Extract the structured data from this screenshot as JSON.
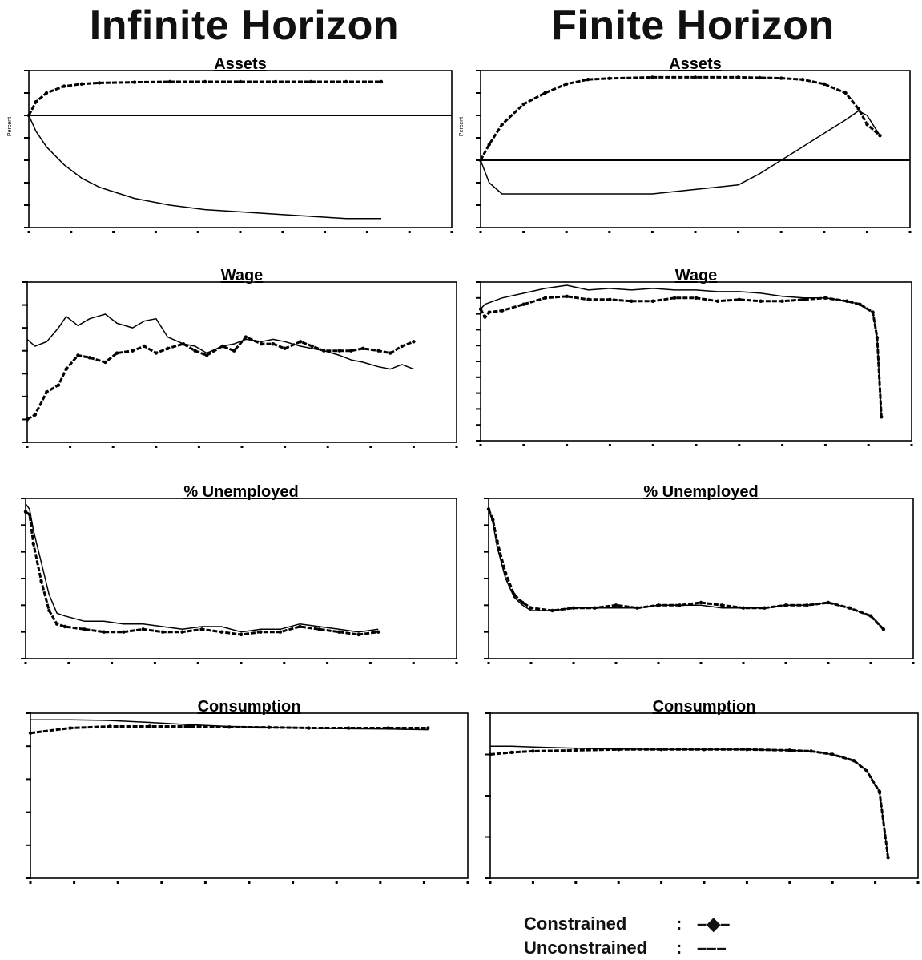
{
  "headings": {
    "left": "Infinite Horizon",
    "right": "Finite Horizon"
  },
  "legend": {
    "constrained_label": "Constrained",
    "constrained_symbol": "–◆–",
    "unconstrained_label": "Unconstrained",
    "unconstrained_symbol": "–––",
    "separator": ":"
  },
  "chart_data": [
    {
      "id": "infinite-assets",
      "column": "infinite",
      "row": 0,
      "type": "line",
      "title": "Assets",
      "ylabel": "Percent",
      "x": [
        0,
        0.02,
        0.05,
        0.1,
        0.15,
        0.2,
        0.3,
        0.4,
        0.5,
        0.6,
        0.7,
        0.8,
        0.9,
        1.0
      ],
      "xlim": [
        0,
        1.2
      ],
      "ylim": [
        -5,
        2
      ],
      "zero_line": 0,
      "series": [
        {
          "style": "constrained",
          "values": [
            0,
            0.6,
            1.0,
            1.3,
            1.4,
            1.45,
            1.48,
            1.5,
            1.5,
            1.5,
            1.5,
            1.5,
            1.5,
            1.5
          ]
        },
        {
          "style": "unconstrained",
          "values": [
            0,
            -0.7,
            -1.4,
            -2.2,
            -2.8,
            -3.2,
            -3.7,
            -4.0,
            -4.2,
            -4.3,
            -4.4,
            -4.5,
            -4.6,
            -4.6
          ]
        }
      ]
    },
    {
      "id": "finite-assets",
      "column": "finite",
      "row": 0,
      "type": "line",
      "title": "Assets",
      "ylabel": "Percent",
      "x": [
        0,
        0.02,
        0.05,
        0.1,
        0.15,
        0.2,
        0.25,
        0.3,
        0.4,
        0.5,
        0.6,
        0.65,
        0.7,
        0.75,
        0.8,
        0.85,
        0.88,
        0.9,
        0.93
      ],
      "xlim": [
        0,
        1.0
      ],
      "ylim": [
        -3,
        4
      ],
      "zero_line": 0,
      "series": [
        {
          "style": "constrained",
          "values": [
            0,
            0.7,
            1.6,
            2.5,
            3.0,
            3.4,
            3.6,
            3.65,
            3.7,
            3.7,
            3.7,
            3.68,
            3.66,
            3.6,
            3.4,
            3.0,
            2.3,
            1.6,
            1.1
          ]
        },
        {
          "style": "unconstrained",
          "values": [
            0,
            -1.0,
            -1.5,
            -1.5,
            -1.5,
            -1.5,
            -1.5,
            -1.5,
            -1.5,
            -1.3,
            -1.1,
            -0.6,
            0.0,
            0.6,
            1.2,
            1.8,
            2.2,
            2.0,
            1.1
          ]
        }
      ]
    },
    {
      "id": "infinite-wage",
      "column": "infinite",
      "row": 1,
      "type": "line",
      "title": "Wage",
      "x": [
        0,
        0.02,
        0.05,
        0.08,
        0.1,
        0.13,
        0.16,
        0.2,
        0.23,
        0.27,
        0.3,
        0.33,
        0.36,
        0.4,
        0.43,
        0.46,
        0.5,
        0.53,
        0.56,
        0.6,
        0.63,
        0.66,
        0.7,
        0.73,
        0.76,
        0.8,
        0.83,
        0.86,
        0.9,
        0.93,
        0.96,
        0.99
      ],
      "xlim": [
        0,
        1.1
      ],
      "ylim": [
        0,
        7
      ],
      "series": [
        {
          "style": "constrained",
          "values": [
            1.0,
            1.2,
            2.2,
            2.5,
            3.2,
            3.8,
            3.7,
            3.5,
            3.9,
            4.0,
            4.2,
            3.9,
            4.1,
            4.3,
            4.0,
            3.8,
            4.2,
            4.0,
            4.6,
            4.3,
            4.3,
            4.1,
            4.4,
            4.2,
            4.0,
            4.0,
            4.0,
            4.1,
            4.0,
            3.9,
            4.2,
            4.4
          ]
        },
        {
          "style": "unconstrained",
          "values": [
            4.5,
            4.2,
            4.4,
            5.0,
            5.5,
            5.1,
            5.4,
            5.6,
            5.2,
            5.0,
            5.3,
            5.4,
            4.6,
            4.3,
            4.2,
            3.9,
            4.2,
            4.3,
            4.5,
            4.4,
            4.5,
            4.4,
            4.2,
            4.1,
            4.0,
            3.8,
            3.6,
            3.5,
            3.3,
            3.2,
            3.4,
            3.2
          ]
        }
      ]
    },
    {
      "id": "finite-wage",
      "column": "finite",
      "row": 1,
      "type": "line",
      "title": "Wage",
      "x": [
        0,
        0.01,
        0.02,
        0.05,
        0.1,
        0.15,
        0.2,
        0.25,
        0.3,
        0.35,
        0.4,
        0.45,
        0.5,
        0.55,
        0.6,
        0.65,
        0.7,
        0.75,
        0.8,
        0.85,
        0.88,
        0.91,
        0.92,
        0.93
      ],
      "xlim": [
        0,
        1.0
      ],
      "ylim": [
        0,
        10
      ],
      "series": [
        {
          "style": "constrained",
          "values": [
            8.3,
            7.8,
            8.1,
            8.2,
            8.6,
            9.0,
            9.1,
            8.9,
            8.9,
            8.8,
            8.8,
            9.0,
            9.0,
            8.8,
            8.9,
            8.8,
            8.8,
            8.9,
            9.0,
            8.8,
            8.6,
            8.1,
            6.5,
            1.5
          ]
        },
        {
          "style": "unconstrained",
          "values": [
            8.3,
            8.6,
            8.7,
            9.0,
            9.3,
            9.6,
            9.8,
            9.5,
            9.6,
            9.5,
            9.6,
            9.5,
            9.5,
            9.4,
            9.4,
            9.3,
            9.1,
            9.0,
            9.0,
            8.8,
            8.6,
            8.1,
            6.5,
            1.5
          ]
        }
      ]
    },
    {
      "id": "infinite-unemployed",
      "column": "infinite",
      "row": 2,
      "type": "line",
      "title": "% Unemployed",
      "x": [
        0,
        0.01,
        0.02,
        0.04,
        0.06,
        0.08,
        0.1,
        0.15,
        0.2,
        0.25,
        0.3,
        0.35,
        0.4,
        0.45,
        0.5,
        0.55,
        0.6,
        0.65,
        0.7,
        0.75,
        0.8,
        0.85,
        0.9
      ],
      "xlim": [
        0,
        1.1
      ],
      "ylim": [
        0,
        6
      ],
      "series": [
        {
          "style": "constrained",
          "values": [
            5.5,
            5.4,
            4.3,
            2.9,
            1.8,
            1.3,
            1.2,
            1.1,
            1.0,
            1.0,
            1.1,
            1.0,
            1.0,
            1.1,
            1.0,
            0.9,
            1.0,
            1.0,
            1.2,
            1.1,
            1.0,
            0.9,
            1.0
          ]
        },
        {
          "style": "unconstrained",
          "values": [
            5.8,
            5.6,
            4.8,
            3.6,
            2.4,
            1.7,
            1.6,
            1.4,
            1.4,
            1.3,
            1.3,
            1.2,
            1.1,
            1.2,
            1.2,
            1.0,
            1.1,
            1.1,
            1.3,
            1.2,
            1.1,
            1.0,
            1.1
          ]
        }
      ]
    },
    {
      "id": "finite-unemployed",
      "column": "finite",
      "row": 2,
      "type": "line",
      "title": "% Unemployed",
      "x": [
        0,
        0.01,
        0.02,
        0.04,
        0.06,
        0.08,
        0.1,
        0.15,
        0.2,
        0.25,
        0.3,
        0.35,
        0.4,
        0.45,
        0.5,
        0.55,
        0.6,
        0.65,
        0.7,
        0.75,
        0.8,
        0.85,
        0.9,
        0.93
      ],
      "xlim": [
        0,
        1.0
      ],
      "ylim": [
        0,
        6
      ],
      "series": [
        {
          "style": "constrained",
          "values": [
            5.6,
            5.2,
            4.4,
            3.2,
            2.4,
            2.1,
            1.9,
            1.8,
            1.9,
            1.9,
            2.0,
            1.9,
            2.0,
            2.0,
            2.1,
            2.0,
            1.9,
            1.9,
            2.0,
            2.0,
            2.1,
            1.9,
            1.6,
            1.1
          ]
        },
        {
          "style": "unconstrained",
          "values": [
            5.6,
            5.1,
            4.2,
            3.0,
            2.3,
            2.0,
            1.8,
            1.8,
            1.9,
            1.9,
            1.9,
            1.9,
            2.0,
            2.0,
            2.0,
            1.9,
            1.9,
            1.9,
            2.0,
            2.0,
            2.1,
            1.9,
            1.6,
            1.1
          ]
        }
      ]
    },
    {
      "id": "infinite-consumption",
      "column": "infinite",
      "row": 3,
      "type": "line",
      "title": "Consumption",
      "x": [
        0,
        0.1,
        0.2,
        0.3,
        0.4,
        0.5,
        0.6,
        0.7,
        0.8,
        0.9,
        1.0
      ],
      "xlim": [
        0,
        1.1
      ],
      "ylim": [
        0,
        5
      ],
      "series": [
        {
          "style": "constrained",
          "values": [
            4.4,
            4.55,
            4.6,
            4.6,
            4.6,
            4.58,
            4.57,
            4.55,
            4.55,
            4.55,
            4.55
          ]
        },
        {
          "style": "unconstrained",
          "values": [
            4.8,
            4.8,
            4.78,
            4.72,
            4.65,
            4.6,
            4.57,
            4.55,
            4.53,
            4.52,
            4.5
          ]
        }
      ]
    },
    {
      "id": "finite-consumption",
      "column": "finite",
      "row": 3,
      "type": "line",
      "title": "Consumption",
      "x": [
        0,
        0.05,
        0.1,
        0.2,
        0.3,
        0.4,
        0.5,
        0.6,
        0.7,
        0.75,
        0.8,
        0.85,
        0.88,
        0.91,
        0.93
      ],
      "xlim": [
        0,
        1.0
      ],
      "ylim": [
        0,
        4
      ],
      "series": [
        {
          "style": "constrained",
          "values": [
            3.0,
            3.05,
            3.08,
            3.1,
            3.12,
            3.12,
            3.12,
            3.12,
            3.1,
            3.08,
            3.0,
            2.85,
            2.6,
            2.1,
            0.5
          ]
        },
        {
          "style": "unconstrained",
          "values": [
            3.2,
            3.2,
            3.18,
            3.15,
            3.13,
            3.12,
            3.12,
            3.12,
            3.1,
            3.08,
            3.0,
            2.85,
            2.6,
            2.1,
            0.5
          ]
        }
      ]
    }
  ]
}
